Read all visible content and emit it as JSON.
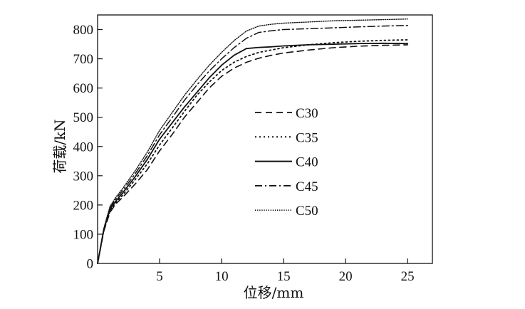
{
  "chart_data": {
    "type": "line",
    "title": "",
    "xlabel": "位移/mm",
    "ylabel": "荷载/kN",
    "xlim": [
      0,
      27
    ],
    "ylim": [
      0,
      850
    ],
    "xticks": [
      5,
      10,
      15,
      20,
      25
    ],
    "yticks": [
      0,
      100,
      200,
      300,
      400,
      500,
      600,
      700,
      800
    ],
    "grid": false,
    "legend_position": "center-right",
    "series": [
      {
        "name": "C30",
        "dash": "dashed",
        "x": [
          0,
          0.5,
          1,
          1.5,
          2,
          3,
          4,
          5,
          6,
          7,
          8,
          9,
          10,
          11,
          12,
          13,
          14,
          15,
          17,
          19,
          21,
          23,
          25
        ],
        "y": [
          0,
          110,
          175,
          205,
          225,
          270,
          320,
          385,
          440,
          500,
          550,
          600,
          640,
          668,
          688,
          702,
          712,
          720,
          730,
          738,
          743,
          746,
          748
        ]
      },
      {
        "name": "C35",
        "dash": "dotted",
        "x": [
          0,
          0.5,
          1,
          1.5,
          2,
          3,
          4,
          5,
          6,
          7,
          8,
          9,
          10,
          11,
          12,
          13,
          14,
          15,
          17,
          19,
          21,
          23,
          25
        ],
        "y": [
          0,
          112,
          180,
          210,
          232,
          285,
          340,
          405,
          462,
          520,
          575,
          620,
          660,
          688,
          708,
          722,
          730,
          738,
          748,
          755,
          760,
          763,
          765
        ]
      },
      {
        "name": "C40",
        "dash": "solid",
        "x": [
          0,
          0.5,
          1,
          1.5,
          2,
          3,
          4,
          5,
          6,
          7,
          8,
          9,
          10,
          11,
          12,
          13,
          14,
          15,
          17,
          19,
          21,
          23,
          25
        ],
        "y": [
          0,
          115,
          185,
          215,
          240,
          295,
          355,
          425,
          480,
          535,
          585,
          635,
          678,
          712,
          735,
          739,
          741,
          744,
          748,
          750,
          752,
          753,
          752
        ]
      },
      {
        "name": "C45",
        "dash": "dashdot",
        "x": [
          0,
          0.5,
          1,
          1.5,
          2,
          3,
          4,
          5,
          6,
          7,
          8,
          9,
          10,
          11,
          12,
          13,
          14,
          15,
          17,
          19,
          21,
          23,
          25
        ],
        "y": [
          0,
          118,
          190,
          222,
          248,
          305,
          368,
          440,
          498,
          558,
          610,
          658,
          700,
          738,
          770,
          790,
          796,
          800,
          803,
          806,
          809,
          812,
          814
        ]
      },
      {
        "name": "C50",
        "dash": "dense-dotted",
        "x": [
          0,
          0.5,
          1,
          1.5,
          2,
          3,
          4,
          5,
          6,
          7,
          8,
          9,
          10,
          11,
          12,
          13,
          14,
          15,
          17,
          19,
          21,
          23,
          25
        ],
        "y": [
          0,
          120,
          195,
          228,
          255,
          315,
          380,
          455,
          515,
          575,
          628,
          678,
          722,
          762,
          795,
          812,
          818,
          822,
          826,
          830,
          832,
          834,
          836
        ]
      }
    ]
  }
}
